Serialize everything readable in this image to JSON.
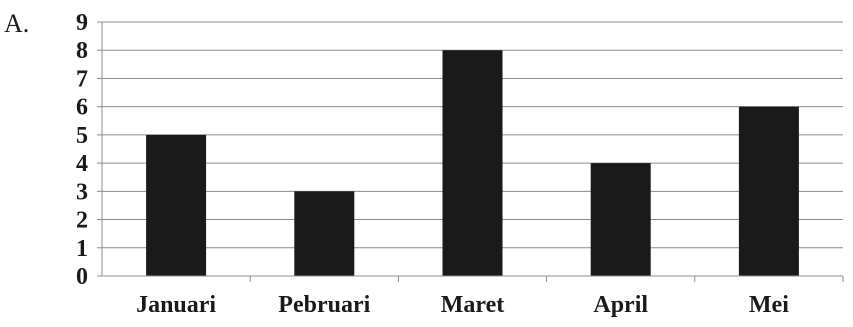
{
  "option_label": "A.",
  "chart_data": {
    "type": "bar",
    "categories": [
      "Januari",
      "Pebruari",
      "Maret",
      "April",
      "Mei"
    ],
    "values": [
      5,
      3,
      8,
      4,
      6
    ],
    "ylim": [
      0,
      9
    ],
    "yticks": [
      "0",
      "1",
      "2",
      "3",
      "4",
      "5",
      "6",
      "7",
      "8",
      "9"
    ],
    "grid": true,
    "legend": "none",
    "bar_color": "#1a1a1a",
    "grid_color": "#8c8c8c",
    "axis_color": "#8c8c8c"
  }
}
